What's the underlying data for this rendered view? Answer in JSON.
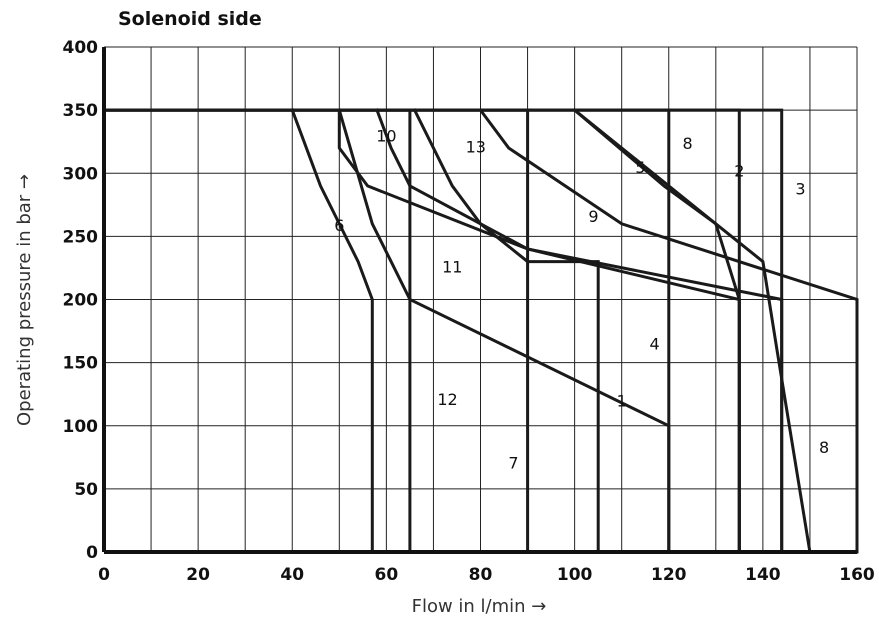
{
  "chart_data": {
    "type": "line",
    "title": "Solenoid side",
    "xlabel": "Flow in l/min →",
    "ylabel": "Operating pressure in bar →",
    "xlim": [
      0,
      160
    ],
    "ylim": [
      0,
      400
    ],
    "x_ticks": [
      "0",
      "20",
      "40",
      "60",
      "80",
      "100",
      "120",
      "140",
      "160"
    ],
    "y_ticks": [
      "0",
      "50",
      "100",
      "150",
      "200",
      "250",
      "300",
      "350",
      "400"
    ],
    "grid": true,
    "series": [
      {
        "name": "1",
        "x": [
          0,
          65,
          65,
          120,
          120
        ],
        "y": [
          350,
          350,
          200,
          100,
          0
        ]
      },
      {
        "name": "2",
        "x": [
          0,
          135,
          135
        ],
        "y": [
          350,
          350,
          0
        ]
      },
      {
        "name": "3",
        "x": [
          0,
          144,
          144
        ],
        "y": [
          350,
          350,
          0
        ]
      },
      {
        "name": "4",
        "x": [
          0,
          120,
          120
        ],
        "y": [
          350,
          350,
          0
        ]
      },
      {
        "name": "5",
        "x": [
          100,
          119,
          130,
          135,
          135
        ],
        "y": [
          350,
          290,
          260,
          200,
          0
        ]
      },
      {
        "name": "6",
        "x": [
          40,
          46,
          54,
          57,
          57
        ],
        "y": [
          350,
          290,
          230,
          200,
          0
        ]
      },
      {
        "name": "7",
        "x": [
          0,
          90,
          90
        ],
        "y": [
          350,
          350,
          0
        ]
      },
      {
        "name": "8",
        "x": [
          100,
          110,
          130,
          140,
          143,
          150
        ],
        "y": [
          350,
          320,
          260,
          230,
          160,
          0
        ]
      },
      {
        "name": "9",
        "x": [
          80,
          86,
          110,
          160,
          160
        ],
        "y": [
          350,
          320,
          260,
          200,
          0
        ]
      },
      {
        "name": "10",
        "x": [
          58,
          61,
          65,
          80,
          90,
          105,
          105
        ],
        "y": [
          350,
          320,
          290,
          260,
          230,
          230,
          0
        ]
      },
      {
        "name": "11",
        "x": [
          50,
          50,
          56,
          90,
          135,
          135
        ],
        "y": [
          350,
          320,
          290,
          240,
          200,
          0
        ]
      },
      {
        "name": "12",
        "x": [
          50,
          57,
          61,
          65,
          65
        ],
        "y": [
          350,
          260,
          230,
          200,
          0
        ]
      },
      {
        "name": "13",
        "x": [
          66,
          74,
          80,
          90,
          144,
          144
        ],
        "y": [
          350,
          290,
          260,
          240,
          200,
          0
        ]
      }
    ],
    "curve_labels": [
      {
        "text": "1",
        "x": 110,
        "y": 120
      },
      {
        "text": "2",
        "x": 135,
        "y": 302
      },
      {
        "text": "3",
        "x": 148,
        "y": 288
      },
      {
        "text": "4",
        "x": 117,
        "y": 165
      },
      {
        "text": "5",
        "x": 114,
        "y": 305
      },
      {
        "text": "6",
        "x": 50,
        "y": 259
      },
      {
        "text": "7",
        "x": 87,
        "y": 71
      },
      {
        "text": "8",
        "x": 124,
        "y": 324
      },
      {
        "text": "8",
        "x": 153,
        "y": 83
      },
      {
        "text": "9",
        "x": 104,
        "y": 266
      },
      {
        "text": "10",
        "x": 60,
        "y": 330
      },
      {
        "text": "11",
        "x": 74,
        "y": 226
      },
      {
        "text": "12",
        "x": 73,
        "y": 121
      },
      {
        "text": "13",
        "x": 79,
        "y": 321
      }
    ]
  }
}
